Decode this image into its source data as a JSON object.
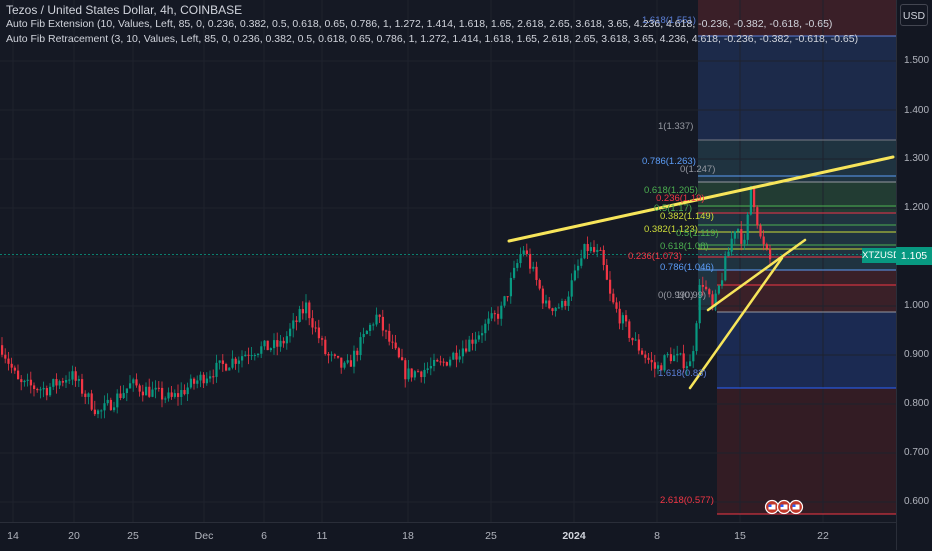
{
  "header": {
    "title": "Tezos / United States Dollar, 4h, COINBASE",
    "indicator1": "Auto Fib Extension (10, Values, Left, 85, 0, 0.236, 0.382, 0.5, 0.618, 0.65, 0.786, 1, 1.272, 1.414, 1.618, 1.65, 2.618, 2.65, 3.618, 3.65, 4.236, 4.618, -0.236, -0.382, -0.618, -0.65)",
    "indicator2": "Auto Fib Retracement (3, 10, Values, Left, 85, 0, 0.236, 0.382, 0.5, 0.618, 0.65, 0.786, 1, 1.272, 1.414, 1.618, 1.65, 2.618, 2.65, 3.618, 3.65, 4.236, 4.618, -0.236, -0.382, -0.618, -0.65)"
  },
  "price_scale": {
    "currency_button": "USD",
    "ticks": [
      "1.500",
      "1.400",
      "1.300",
      "1.200",
      "1.000",
      "0.900",
      "0.800",
      "0.700",
      "0.600"
    ],
    "current_price": "1.105",
    "symbol": "XTZUSD"
  },
  "time_scale": {
    "ticks": [
      "14",
      "20",
      "25",
      "Dec",
      "6",
      "11",
      "18",
      "25",
      "2024",
      "8",
      "15",
      "22"
    ]
  },
  "fib_labels": [
    {
      "text": "1.618(1.551)",
      "color": "#5b7fd6"
    },
    {
      "text": "1(1.337)",
      "color": "#9598a1"
    },
    {
      "text": "0.786(1.263)",
      "color": "#5b9cf6"
    },
    {
      "text": "0(1.247)",
      "color": "#9598a1"
    },
    {
      "text": "0.618(1.205)",
      "color": "#4caf50"
    },
    {
      "text": "0.236(1.19)",
      "color": "#f23645"
    },
    {
      "text": "0.5(1.17)",
      "color": "#4caf50"
    },
    {
      "text": "0.382(1.149)",
      "color": "#cddc39"
    },
    {
      "text": "0.382(1.123)",
      "color": "#cddc39"
    },
    {
      "text": "0.5(1.119)",
      "color": "#4caf50"
    },
    {
      "text": "0.618(1.08)",
      "color": "#4caf50"
    },
    {
      "text": "0.236(1.073)",
      "color": "#f23645"
    },
    {
      "text": "0.786(1.046)",
      "color": "#5b9cf6"
    },
    {
      "text": "0(0.990)",
      "color": "#9598a1"
    },
    {
      "text": "1(0.99)",
      "color": "#9598a1"
    },
    {
      "text": "1.618(0.83)",
      "color": "#5b7fd6"
    },
    {
      "text": "2.618(0.577)",
      "color": "#f23645"
    }
  ],
  "colors": {
    "bull": "#089981",
    "bear": "#f23645",
    "trendline": "#f7e55a",
    "background": "#131722"
  },
  "icons": [
    "flag-icon",
    "flag-icon",
    "flag-icon"
  ]
}
